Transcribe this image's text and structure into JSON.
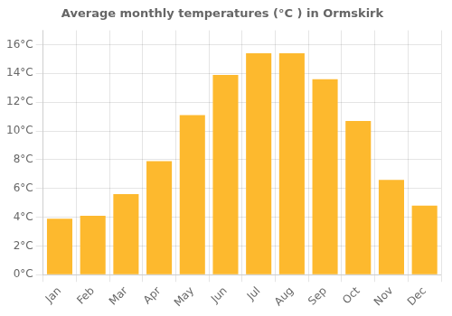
{
  "chart_data": {
    "type": "bar",
    "title": "Average monthly temperatures (°C ) in Ormskirk",
    "categories": [
      "Jan",
      "Feb",
      "Mar",
      "Apr",
      "May",
      "Jun",
      "Jul",
      "Aug",
      "Sep",
      "Oct",
      "Nov",
      "Dec"
    ],
    "values": [
      3.9,
      4.1,
      5.6,
      7.9,
      11.1,
      13.9,
      15.4,
      15.4,
      13.6,
      10.7,
      6.6,
      4.8
    ],
    "color": "#FDB92E",
    "ylim": [
      0,
      17
    ],
    "yticks": [
      {
        "value": 0,
        "label": "0°C"
      },
      {
        "value": 2,
        "label": "2°C"
      },
      {
        "value": 4,
        "label": "4°C"
      },
      {
        "value": 6,
        "label": "6°C"
      },
      {
        "value": 8,
        "label": "8°C"
      },
      {
        "value": 10,
        "label": "10°C"
      },
      {
        "value": 12,
        "label": "12°C"
      },
      {
        "value": 14,
        "label": "14°C"
      },
      {
        "value": 16,
        "label": "16°C"
      }
    ],
    "grid": true
  }
}
